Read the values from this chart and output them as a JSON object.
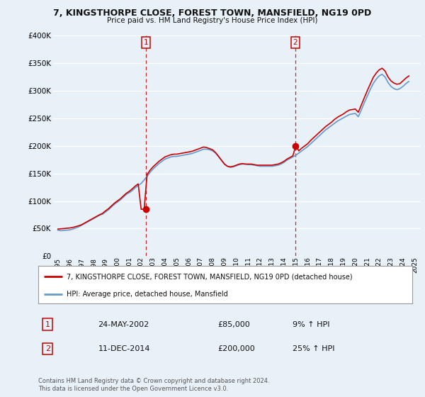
{
  "title": "7, KINGSTHORPE CLOSE, FOREST TOWN, MANSFIELD, NG19 0PD",
  "subtitle": "Price paid vs. HM Land Registry's House Price Index (HPI)",
  "legend_property": "7, KINGSTHORPE CLOSE, FOREST TOWN, MANSFIELD, NG19 0PD (detached house)",
  "legend_hpi": "HPI: Average price, detached house, Mansfield",
  "footnote": "Contains HM Land Registry data © Crown copyright and database right 2024.\nThis data is licensed under the Open Government Licence v3.0.",
  "sale1_date": "24-MAY-2002",
  "sale1_price": "£85,000",
  "sale1_hpi": "9% ↑ HPI",
  "sale2_date": "11-DEC-2014",
  "sale2_price": "£200,000",
  "sale2_hpi": "25% ↑ HPI",
  "ylim": [
    0,
    400000
  ],
  "yticks": [
    0,
    50000,
    100000,
    150000,
    200000,
    250000,
    300000,
    350000,
    400000
  ],
  "xlim_start": 1994.6,
  "xlim_end": 2025.5,
  "background_color": "#e8f0f8",
  "plot_bg_color": "#e8f0f8",
  "grid_color": "#ffffff",
  "red_color": "#cc0000",
  "blue_color": "#6699cc",
  "marker1_x": 2002.39,
  "marker1_y": 85000,
  "marker2_x": 2014.95,
  "marker2_y": 200000,
  "vline1_x": 2002.39,
  "vline2_x": 2014.95,
  "hpi_data_x": [
    1995.0,
    1995.25,
    1995.5,
    1995.75,
    1996.0,
    1996.25,
    1996.5,
    1996.75,
    1997.0,
    1997.25,
    1997.5,
    1997.75,
    1998.0,
    1998.25,
    1998.5,
    1998.75,
    1999.0,
    1999.25,
    1999.5,
    1999.75,
    2000.0,
    2000.25,
    2000.5,
    2000.75,
    2001.0,
    2001.25,
    2001.5,
    2001.75,
    2002.0,
    2002.25,
    2002.5,
    2002.75,
    2003.0,
    2003.25,
    2003.5,
    2003.75,
    2004.0,
    2004.25,
    2004.5,
    2004.75,
    2005.0,
    2005.25,
    2005.5,
    2005.75,
    2006.0,
    2006.25,
    2006.5,
    2006.75,
    2007.0,
    2007.25,
    2007.5,
    2007.75,
    2008.0,
    2008.25,
    2008.5,
    2008.75,
    2009.0,
    2009.25,
    2009.5,
    2009.75,
    2010.0,
    2010.25,
    2010.5,
    2010.75,
    2011.0,
    2011.25,
    2011.5,
    2011.75,
    2012.0,
    2012.25,
    2012.5,
    2012.75,
    2013.0,
    2013.25,
    2013.5,
    2013.75,
    2014.0,
    2014.25,
    2014.5,
    2014.75,
    2015.0,
    2015.25,
    2015.5,
    2015.75,
    2016.0,
    2016.25,
    2016.5,
    2016.75,
    2017.0,
    2017.25,
    2017.5,
    2017.75,
    2018.0,
    2018.25,
    2018.5,
    2018.75,
    2019.0,
    2019.25,
    2019.5,
    2019.75,
    2020.0,
    2020.25,
    2020.5,
    2020.75,
    2021.0,
    2021.25,
    2021.5,
    2021.75,
    2022.0,
    2022.25,
    2022.5,
    2022.75,
    2023.0,
    2023.25,
    2023.5,
    2023.75,
    2024.0,
    2024.25,
    2024.5
  ],
  "hpi_data_y": [
    47000,
    46000,
    46500,
    47000,
    47500,
    49000,
    51000,
    53000,
    56000,
    59000,
    62000,
    65000,
    68000,
    71000,
    74000,
    76000,
    80000,
    84000,
    89000,
    94000,
    98000,
    102000,
    107000,
    112000,
    115000,
    119000,
    124000,
    128000,
    132000,
    138000,
    145000,
    152000,
    158000,
    163000,
    168000,
    172000,
    176000,
    178000,
    180000,
    181000,
    181000,
    182000,
    183000,
    184000,
    185000,
    186000,
    188000,
    190000,
    192000,
    194000,
    194000,
    193000,
    191000,
    187000,
    181000,
    174000,
    167000,
    163000,
    161000,
    162000,
    164000,
    166000,
    167000,
    167000,
    166000,
    166000,
    165000,
    164000,
    163000,
    163000,
    163000,
    163000,
    163000,
    164000,
    165000,
    167000,
    170000,
    174000,
    177000,
    180000,
    183000,
    187000,
    191000,
    195000,
    199000,
    204000,
    209000,
    214000,
    219000,
    224000,
    229000,
    233000,
    237000,
    241000,
    245000,
    248000,
    251000,
    254000,
    257000,
    258000,
    259000,
    253000,
    265000,
    278000,
    290000,
    302000,
    313000,
    321000,
    327000,
    330000,
    325000,
    315000,
    308000,
    304000,
    302000,
    304000,
    308000,
    313000,
    317000
  ],
  "property_data_x": [
    1995.0,
    1995.25,
    1995.5,
    1995.75,
    1996.0,
    1996.25,
    1996.5,
    1996.75,
    1997.0,
    1997.25,
    1997.5,
    1997.75,
    1998.0,
    1998.25,
    1998.5,
    1998.75,
    1999.0,
    1999.25,
    1999.5,
    1999.75,
    2000.0,
    2000.25,
    2000.5,
    2000.75,
    2001.0,
    2001.25,
    2001.5,
    2001.75,
    2002.0,
    2002.25,
    2002.5,
    2002.75,
    2003.0,
    2003.25,
    2003.5,
    2003.75,
    2004.0,
    2004.25,
    2004.5,
    2004.75,
    2005.0,
    2005.25,
    2005.5,
    2005.75,
    2006.0,
    2006.25,
    2006.5,
    2006.75,
    2007.0,
    2007.25,
    2007.5,
    2007.75,
    2008.0,
    2008.25,
    2008.5,
    2008.75,
    2009.0,
    2009.25,
    2009.5,
    2009.75,
    2010.0,
    2010.25,
    2010.5,
    2010.75,
    2011.0,
    2011.25,
    2011.5,
    2011.75,
    2012.0,
    2012.25,
    2012.5,
    2012.75,
    2013.0,
    2013.25,
    2013.5,
    2013.75,
    2014.0,
    2014.25,
    2014.5,
    2014.75,
    2015.0,
    2015.25,
    2015.5,
    2015.75,
    2016.0,
    2016.25,
    2016.5,
    2016.75,
    2017.0,
    2017.25,
    2017.5,
    2017.75,
    2018.0,
    2018.25,
    2018.5,
    2018.75,
    2019.0,
    2019.25,
    2019.5,
    2019.75,
    2020.0,
    2020.25,
    2020.5,
    2020.75,
    2021.0,
    2021.25,
    2021.5,
    2021.75,
    2022.0,
    2022.25,
    2022.5,
    2022.75,
    2023.0,
    2023.25,
    2023.5,
    2023.75,
    2024.0,
    2024.25,
    2024.5
  ],
  "property_data_y": [
    49000,
    49500,
    50000,
    50500,
    51000,
    52000,
    53500,
    55000,
    57000,
    60000,
    63000,
    66000,
    69000,
    72000,
    75000,
    77500,
    82000,
    86000,
    91000,
    96000,
    100000,
    104000,
    109000,
    114000,
    117500,
    122000,
    127000,
    131000,
    85000,
    85000,
    148000,
    156000,
    162000,
    167000,
    172000,
    176000,
    180000,
    182000,
    184000,
    185000,
    185000,
    186000,
    187000,
    188000,
    189000,
    190000,
    192000,
    194000,
    196000,
    198000,
    197000,
    195000,
    193000,
    188000,
    181000,
    174000,
    167000,
    163000,
    162000,
    163000,
    165000,
    167000,
    168000,
    167000,
    167000,
    167000,
    166000,
    165000,
    165000,
    165000,
    165000,
    165000,
    165000,
    166000,
    167000,
    169000,
    172000,
    176000,
    179000,
    182000,
    200000,
    191000,
    196000,
    200000,
    204000,
    210000,
    215000,
    220000,
    225000,
    230000,
    235000,
    239000,
    243000,
    248000,
    252000,
    255000,
    258000,
    262000,
    265000,
    266000,
    267000,
    261000,
    274000,
    287000,
    300000,
    312000,
    324000,
    332000,
    338000,
    341000,
    336000,
    325000,
    318000,
    314000,
    312000,
    313000,
    318000,
    323000,
    327000
  ]
}
